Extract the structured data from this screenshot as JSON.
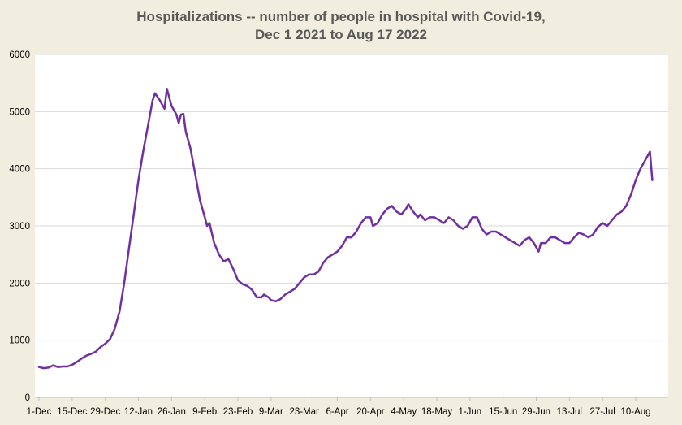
{
  "colors": {
    "background": "#f2eedf",
    "plot_area": "#ffffff",
    "line": "#7030a0",
    "grid": "#d9d9d9",
    "title": "#595959"
  },
  "chart_data": {
    "type": "line",
    "title_line1": "Hospitalizations -- number of people in hospital with Covid-19,",
    "title_line2": "Dec 1 2021 to Aug 17  2022",
    "xlabel": "",
    "ylabel": "",
    "ylim": [
      0,
      6000
    ],
    "xlim": [
      "2021-12-01",
      "2022-08-17"
    ],
    "y_ticks": [
      0,
      1000,
      2000,
      3000,
      4000,
      5000,
      6000
    ],
    "y_tick_labels": [
      "0",
      "1000",
      "2000",
      "3000",
      "4000",
      "5000",
      "6000"
    ],
    "x_ticks": [
      "2021-12-01",
      "2021-12-15",
      "2021-12-29",
      "2022-01-12",
      "2022-01-26",
      "2022-02-09",
      "2022-02-23",
      "2022-03-09",
      "2022-03-23",
      "2022-04-06",
      "2022-04-20",
      "2022-05-04",
      "2022-05-18",
      "2022-06-01",
      "2022-06-15",
      "2022-06-29",
      "2022-07-13",
      "2022-07-27",
      "2022-08-10"
    ],
    "x_tick_labels": [
      "1-Dec",
      "15-Dec",
      "29-Dec",
      "12-Jan",
      "26-Jan",
      "9-Feb",
      "23-Feb",
      "9-Mar",
      "23-Mar",
      "6-Apr",
      "20-Apr",
      "4-May",
      "18-May",
      "1-Jun",
      "15-Jun",
      "29-Jun",
      "13-Jul",
      "27-Jul",
      "10-Aug"
    ],
    "grid": true,
    "legend": "none",
    "series": [
      {
        "points": [
          [
            "2021-12-01",
            530
          ],
          [
            "2021-12-03",
            510
          ],
          [
            "2021-12-05",
            520
          ],
          [
            "2021-12-07",
            560
          ],
          [
            "2021-12-09",
            530
          ],
          [
            "2021-12-11",
            540
          ],
          [
            "2021-12-13",
            540
          ],
          [
            "2021-12-15",
            570
          ],
          [
            "2021-12-17",
            620
          ],
          [
            "2021-12-19",
            680
          ],
          [
            "2021-12-21",
            730
          ],
          [
            "2021-12-23",
            760
          ],
          [
            "2021-12-25",
            800
          ],
          [
            "2021-12-27",
            880
          ],
          [
            "2021-12-29",
            940
          ],
          [
            "2021-12-31",
            1020
          ],
          [
            "2022-01-02",
            1200
          ],
          [
            "2022-01-04",
            1500
          ],
          [
            "2022-01-06",
            2000
          ],
          [
            "2022-01-08",
            2600
          ],
          [
            "2022-01-10",
            3200
          ],
          [
            "2022-01-12",
            3800
          ],
          [
            "2022-01-14",
            4300
          ],
          [
            "2022-01-16",
            4750
          ],
          [
            "2022-01-18",
            5200
          ],
          [
            "2022-01-19",
            5320
          ],
          [
            "2022-01-21",
            5200
          ],
          [
            "2022-01-23",
            5050
          ],
          [
            "2022-01-24",
            5400
          ],
          [
            "2022-01-26",
            5100
          ],
          [
            "2022-01-28",
            4950
          ],
          [
            "2022-01-29",
            4800
          ],
          [
            "2022-01-30",
            4950
          ],
          [
            "2022-01-31",
            4960
          ],
          [
            "2022-02-01",
            4650
          ],
          [
            "2022-02-03",
            4350
          ],
          [
            "2022-02-05",
            3900
          ],
          [
            "2022-02-07",
            3450
          ],
          [
            "2022-02-09",
            3150
          ],
          [
            "2022-02-10",
            3000
          ],
          [
            "2022-02-11",
            3050
          ],
          [
            "2022-02-13",
            2700
          ],
          [
            "2022-02-15",
            2500
          ],
          [
            "2022-02-17",
            2380
          ],
          [
            "2022-02-19",
            2420
          ],
          [
            "2022-02-21",
            2250
          ],
          [
            "2022-02-23",
            2050
          ],
          [
            "2022-02-25",
            1980
          ],
          [
            "2022-02-27",
            1950
          ],
          [
            "2022-03-01",
            1880
          ],
          [
            "2022-03-03",
            1750
          ],
          [
            "2022-03-05",
            1750
          ],
          [
            "2022-03-06",
            1800
          ],
          [
            "2022-03-08",
            1750
          ],
          [
            "2022-03-09",
            1700
          ],
          [
            "2022-03-11",
            1680
          ],
          [
            "2022-03-13",
            1720
          ],
          [
            "2022-03-15",
            1800
          ],
          [
            "2022-03-17",
            1850
          ],
          [
            "2022-03-19",
            1900
          ],
          [
            "2022-03-21",
            2000
          ],
          [
            "2022-03-23",
            2100
          ],
          [
            "2022-03-25",
            2150
          ],
          [
            "2022-03-27",
            2150
          ],
          [
            "2022-03-29",
            2200
          ],
          [
            "2022-03-31",
            2350
          ],
          [
            "2022-04-02",
            2450
          ],
          [
            "2022-04-04",
            2500
          ],
          [
            "2022-04-06",
            2550
          ],
          [
            "2022-04-08",
            2650
          ],
          [
            "2022-04-10",
            2800
          ],
          [
            "2022-04-12",
            2800
          ],
          [
            "2022-04-14",
            2900
          ],
          [
            "2022-04-16",
            3050
          ],
          [
            "2022-04-18",
            3150
          ],
          [
            "2022-04-20",
            3150
          ],
          [
            "2022-04-21",
            3000
          ],
          [
            "2022-04-23",
            3050
          ],
          [
            "2022-04-25",
            3200
          ],
          [
            "2022-04-27",
            3300
          ],
          [
            "2022-04-29",
            3350
          ],
          [
            "2022-05-01",
            3250
          ],
          [
            "2022-05-03",
            3200
          ],
          [
            "2022-05-05",
            3300
          ],
          [
            "2022-05-06",
            3380
          ],
          [
            "2022-05-08",
            3250
          ],
          [
            "2022-05-10",
            3150
          ],
          [
            "2022-05-11",
            3200
          ],
          [
            "2022-05-13",
            3100
          ],
          [
            "2022-05-15",
            3150
          ],
          [
            "2022-05-17",
            3150
          ],
          [
            "2022-05-19",
            3100
          ],
          [
            "2022-05-21",
            3050
          ],
          [
            "2022-05-23",
            3150
          ],
          [
            "2022-05-25",
            3100
          ],
          [
            "2022-05-27",
            3000
          ],
          [
            "2022-05-29",
            2950
          ],
          [
            "2022-05-31",
            3000
          ],
          [
            "2022-06-02",
            3150
          ],
          [
            "2022-06-04",
            3150
          ],
          [
            "2022-06-06",
            2950
          ],
          [
            "2022-06-08",
            2850
          ],
          [
            "2022-06-10",
            2900
          ],
          [
            "2022-06-12",
            2900
          ],
          [
            "2022-06-14",
            2850
          ],
          [
            "2022-06-16",
            2800
          ],
          [
            "2022-06-18",
            2750
          ],
          [
            "2022-06-20",
            2700
          ],
          [
            "2022-06-22",
            2650
          ],
          [
            "2022-06-24",
            2750
          ],
          [
            "2022-06-26",
            2800
          ],
          [
            "2022-06-28",
            2700
          ],
          [
            "2022-06-30",
            2550
          ],
          [
            "2022-07-01",
            2700
          ],
          [
            "2022-07-03",
            2700
          ],
          [
            "2022-07-05",
            2800
          ],
          [
            "2022-07-07",
            2800
          ],
          [
            "2022-07-09",
            2750
          ],
          [
            "2022-07-11",
            2700
          ],
          [
            "2022-07-13",
            2700
          ],
          [
            "2022-07-15",
            2800
          ],
          [
            "2022-07-17",
            2880
          ],
          [
            "2022-07-19",
            2850
          ],
          [
            "2022-07-21",
            2800
          ],
          [
            "2022-07-23",
            2850
          ],
          [
            "2022-07-25",
            2980
          ],
          [
            "2022-07-27",
            3050
          ],
          [
            "2022-07-29",
            3000
          ],
          [
            "2022-07-31",
            3100
          ],
          [
            "2022-08-02",
            3200
          ],
          [
            "2022-08-04",
            3250
          ],
          [
            "2022-08-06",
            3350
          ],
          [
            "2022-08-08",
            3550
          ],
          [
            "2022-08-10",
            3800
          ],
          [
            "2022-08-12",
            4000
          ],
          [
            "2022-08-14",
            4150
          ],
          [
            "2022-08-16",
            4300
          ],
          [
            "2022-08-17",
            3800
          ]
        ]
      }
    ]
  }
}
